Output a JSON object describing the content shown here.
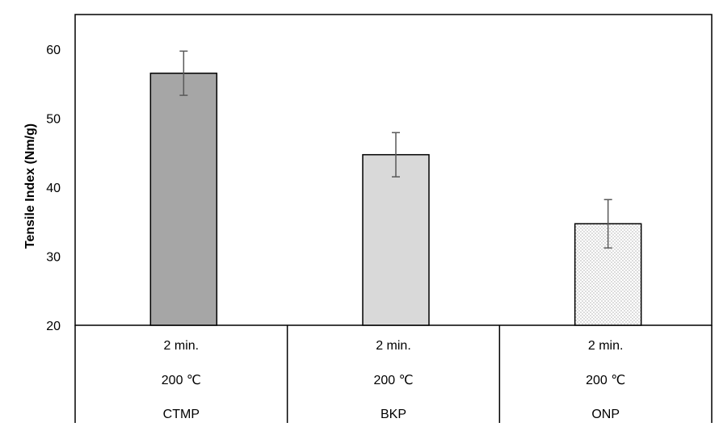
{
  "chart_data": {
    "type": "bar",
    "title": "",
    "xlabel": "",
    "ylabel": "Tensile Index (Nm/g)",
    "ylim": [
      20,
      65
    ],
    "yticks": [
      20,
      30,
      40,
      50,
      60
    ],
    "grid": false,
    "categories": [
      {
        "lines": [
          "2 min.",
          "200 ℃",
          "CTMP"
        ]
      },
      {
        "lines": [
          "2 min.",
          "200 ℃",
          "BKP"
        ]
      },
      {
        "lines": [
          "2 min.",
          "200 ℃",
          "ONP"
        ]
      }
    ],
    "values": [
      56.5,
      44.7,
      34.7
    ],
    "errors": [
      3.2,
      3.2,
      3.5
    ],
    "fills": [
      "#a6a6a6",
      "#d9d9d9",
      "dotted"
    ],
    "colors": {
      "axis": "#000000",
      "error_bar": "#595959",
      "bar_edge": "#000000",
      "dots": "#555555"
    }
  }
}
